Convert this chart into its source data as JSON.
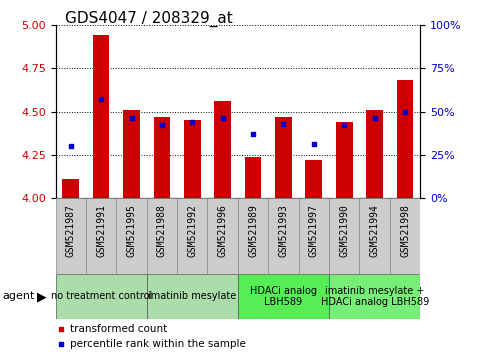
{
  "title": "GDS4047 / 208329_at",
  "samples": [
    "GSM521987",
    "GSM521991",
    "GSM521995",
    "GSM521988",
    "GSM521992",
    "GSM521996",
    "GSM521989",
    "GSM521993",
    "GSM521997",
    "GSM521990",
    "GSM521994",
    "GSM521998"
  ],
  "transformed_count": [
    4.11,
    4.94,
    4.51,
    4.47,
    4.45,
    4.56,
    4.24,
    4.47,
    4.22,
    4.44,
    4.51,
    4.68
  ],
  "percentile_rank": [
    30,
    57,
    46,
    42,
    44,
    46,
    37,
    43,
    31,
    42,
    46,
    50
  ],
  "ylim_left": [
    4.0,
    5.0
  ],
  "ylim_right": [
    0,
    100
  ],
  "yticks_left": [
    4.0,
    4.25,
    4.5,
    4.75,
    5.0
  ],
  "yticks_right": [
    0,
    25,
    50,
    75,
    100
  ],
  "bar_color": "#cc0000",
  "dot_color": "#0000cc",
  "bar_bottom": 4.0,
  "agent_groups": [
    {
      "label": "no treatment control",
      "start": 0,
      "end": 3,
      "bg": "#aaddaa"
    },
    {
      "label": "imatinib mesylate",
      "start": 3,
      "end": 6,
      "bg": "#aaddaa"
    },
    {
      "label": "HDACi analog\nLBH589",
      "start": 6,
      "end": 9,
      "bg": "#55ee55"
    },
    {
      "label": "imatinib mesylate +\nHDACi analog LBH589",
      "start": 9,
      "end": 12,
      "bg": "#77ee77"
    }
  ],
  "legend_items": [
    {
      "label": "transformed count",
      "color": "#cc0000"
    },
    {
      "label": "percentile rank within the sample",
      "color": "#0000cc"
    }
  ],
  "tick_bg_color": "#cccccc",
  "title_fontsize": 11,
  "tick_fontsize": 7,
  "agent_fontsize": 7
}
